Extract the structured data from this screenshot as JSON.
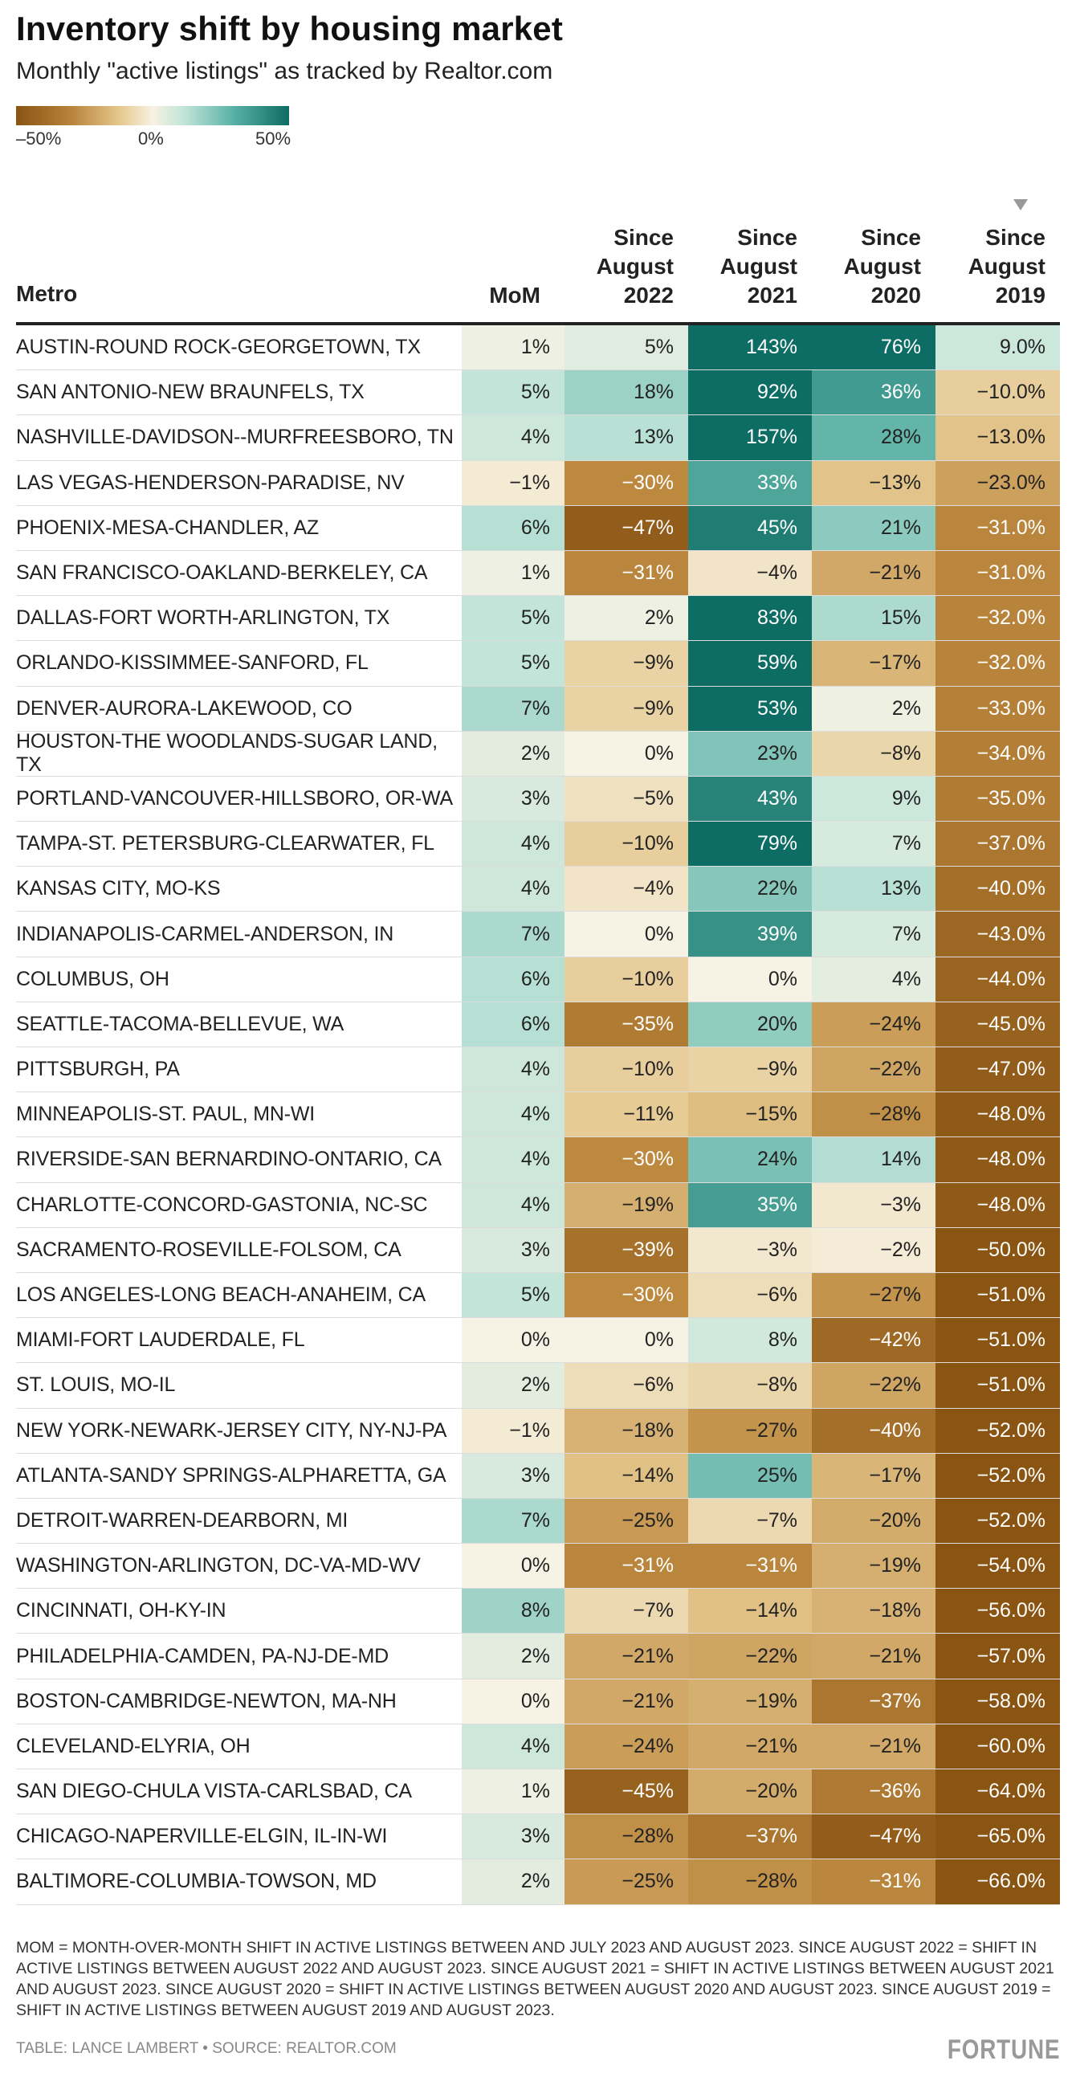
{
  "title": "Inventory shift by housing market",
  "subtitle": "Monthly \"active listings\" as tracked by Realtor.com",
  "legend": {
    "min_label": "–50%",
    "mid_label": "0%",
    "max_label": "50%"
  },
  "colors": {
    "neg_max": "#8a5413",
    "neutral": "#f7f2e3",
    "pos_max": "#0d6c63"
  },
  "columns": {
    "metro": "Metro",
    "mom": "MoM",
    "c2022": [
      "Since",
      "August",
      "2022"
    ],
    "c2021": [
      "Since",
      "August",
      "2021"
    ],
    "c2020": [
      "Since",
      "August",
      "2020"
    ],
    "c2019": [
      "Since",
      "August",
      "2019"
    ],
    "sorted_by": "c2019"
  },
  "chart_data": {
    "type": "table",
    "title": "Inventory shift by housing market",
    "subtitle": "Monthly \"active listings\" as tracked by Realtor.com",
    "color_scale": {
      "min": -50,
      "max": 50
    },
    "rows": [
      {
        "metro": "AUSTIN-ROUND ROCK-GEORGETOWN, TX",
        "mom": 1,
        "c2022": 5,
        "c2021": 143,
        "c2020": 76,
        "c2019": 9.0
      },
      {
        "metro": "SAN ANTONIO-NEW BRAUNFELS, TX",
        "mom": 5,
        "c2022": 18,
        "c2021": 92,
        "c2020": 36,
        "c2019": -10.0
      },
      {
        "metro": "NASHVILLE-DAVIDSON--MURFREESBORO, TN",
        "mom": 4,
        "c2022": 13,
        "c2021": 157,
        "c2020": 28,
        "c2019": -13.0
      },
      {
        "metro": "LAS VEGAS-HENDERSON-PARADISE, NV",
        "mom": -1,
        "c2022": -30,
        "c2021": 33,
        "c2020": -13,
        "c2019": -23.0
      },
      {
        "metro": "PHOENIX-MESA-CHANDLER, AZ",
        "mom": 6,
        "c2022": -47,
        "c2021": 45,
        "c2020": 21,
        "c2019": -31.0
      },
      {
        "metro": "SAN FRANCISCO-OAKLAND-BERKELEY, CA",
        "mom": 1,
        "c2022": -31,
        "c2021": -4,
        "c2020": -21,
        "c2019": -31.0
      },
      {
        "metro": "DALLAS-FORT WORTH-ARLINGTON, TX",
        "mom": 5,
        "c2022": 2,
        "c2021": 83,
        "c2020": 15,
        "c2019": -32.0
      },
      {
        "metro": "ORLANDO-KISSIMMEE-SANFORD, FL",
        "mom": 5,
        "c2022": -9,
        "c2021": 59,
        "c2020": -17,
        "c2019": -32.0
      },
      {
        "metro": "DENVER-AURORA-LAKEWOOD, CO",
        "mom": 7,
        "c2022": -9,
        "c2021": 53,
        "c2020": 2,
        "c2019": -33.0
      },
      {
        "metro": "HOUSTON-THE WOODLANDS-SUGAR LAND, TX",
        "mom": 2,
        "c2022": 0,
        "c2021": 23,
        "c2020": -8,
        "c2019": -34.0
      },
      {
        "metro": "PORTLAND-VANCOUVER-HILLSBORO, OR-WA",
        "mom": 3,
        "c2022": -5,
        "c2021": 43,
        "c2020": 9,
        "c2019": -35.0
      },
      {
        "metro": "TAMPA-ST. PETERSBURG-CLEARWATER, FL",
        "mom": 4,
        "c2022": -10,
        "c2021": 79,
        "c2020": 7,
        "c2019": -37.0
      },
      {
        "metro": "KANSAS CITY, MO-KS",
        "mom": 4,
        "c2022": -4,
        "c2021": 22,
        "c2020": 13,
        "c2019": -40.0
      },
      {
        "metro": "INDIANAPOLIS-CARMEL-ANDERSON, IN",
        "mom": 7,
        "c2022": 0,
        "c2021": 39,
        "c2020": 7,
        "c2019": -43.0
      },
      {
        "metro": "COLUMBUS, OH",
        "mom": 6,
        "c2022": -10,
        "c2021": 0,
        "c2020": 4,
        "c2019": -44.0
      },
      {
        "metro": "SEATTLE-TACOMA-BELLEVUE, WA",
        "mom": 6,
        "c2022": -35,
        "c2021": 20,
        "c2020": -24,
        "c2019": -45.0
      },
      {
        "metro": "PITTSBURGH, PA",
        "mom": 4,
        "c2022": -10,
        "c2021": -9,
        "c2020": -22,
        "c2019": -47.0
      },
      {
        "metro": "MINNEAPOLIS-ST. PAUL, MN-WI",
        "mom": 4,
        "c2022": -11,
        "c2021": -15,
        "c2020": -28,
        "c2019": -48.0
      },
      {
        "metro": "RIVERSIDE-SAN BERNARDINO-ONTARIO, CA",
        "mom": 4,
        "c2022": -30,
        "c2021": 24,
        "c2020": 14,
        "c2019": -48.0
      },
      {
        "metro": "CHARLOTTE-CONCORD-GASTONIA, NC-SC",
        "mom": 4,
        "c2022": -19,
        "c2021": 35,
        "c2020": -3,
        "c2019": -48.0
      },
      {
        "metro": "SACRAMENTO-ROSEVILLE-FOLSOM, CA",
        "mom": 3,
        "c2022": -39,
        "c2021": -3,
        "c2020": -2,
        "c2019": -50.0
      },
      {
        "metro": "LOS ANGELES-LONG BEACH-ANAHEIM, CA",
        "mom": 5,
        "c2022": -30,
        "c2021": -6,
        "c2020": -27,
        "c2019": -51.0
      },
      {
        "metro": "MIAMI-FORT LAUDERDALE, FL",
        "mom": 0,
        "c2022": 0,
        "c2021": 8,
        "c2020": -42,
        "c2019": -51.0
      },
      {
        "metro": "ST. LOUIS, MO-IL",
        "mom": 2,
        "c2022": -6,
        "c2021": -8,
        "c2020": -22,
        "c2019": -51.0
      },
      {
        "metro": "NEW YORK-NEWARK-JERSEY CITY, NY-NJ-PA",
        "mom": -1,
        "c2022": -18,
        "c2021": -27,
        "c2020": -40,
        "c2019": -52.0
      },
      {
        "metro": "ATLANTA-SANDY SPRINGS-ALPHARETTA, GA",
        "mom": 3,
        "c2022": -14,
        "c2021": 25,
        "c2020": -17,
        "c2019": -52.0
      },
      {
        "metro": "DETROIT-WARREN-DEARBORN, MI",
        "mom": 7,
        "c2022": -25,
        "c2021": -7,
        "c2020": -20,
        "c2019": -52.0
      },
      {
        "metro": "WASHINGTON-ARLINGTON, DC-VA-MD-WV",
        "mom": 0,
        "c2022": -31,
        "c2021": -31,
        "c2020": -19,
        "c2019": -54.0
      },
      {
        "metro": "CINCINNATI, OH-KY-IN",
        "mom": 8,
        "c2022": -7,
        "c2021": -14,
        "c2020": -18,
        "c2019": -56.0
      },
      {
        "metro": "PHILADELPHIA-CAMDEN, PA-NJ-DE-MD",
        "mom": 2,
        "c2022": -21,
        "c2021": -22,
        "c2020": -21,
        "c2019": -57.0
      },
      {
        "metro": "BOSTON-CAMBRIDGE-NEWTON, MA-NH",
        "mom": 0,
        "c2022": -21,
        "c2021": -19,
        "c2020": -37,
        "c2019": -58.0
      },
      {
        "metro": "CLEVELAND-ELYRIA, OH",
        "mom": 4,
        "c2022": -24,
        "c2021": -21,
        "c2020": -21,
        "c2019": -60.0
      },
      {
        "metro": "SAN DIEGO-CHULA VISTA-CARLSBAD, CA",
        "mom": 1,
        "c2022": -45,
        "c2021": -20,
        "c2020": -36,
        "c2019": -64.0
      },
      {
        "metro": "CHICAGO-NAPERVILLE-ELGIN, IL-IN-WI",
        "mom": 3,
        "c2022": -28,
        "c2021": -37,
        "c2020": -47,
        "c2019": -65.0
      },
      {
        "metro": "BALTIMORE-COLUMBIA-TOWSON, MD",
        "mom": 2,
        "c2022": -25,
        "c2021": -28,
        "c2020": -31,
        "c2019": -66.0
      }
    ]
  },
  "footnote": "MoM = Month-over-month shift in active listings between and July 2023 and August 2023. Since August 2022 = Shift in active listings between August 2022 and August 2023. Since August 2021 = Shift in active listings between August 2021 and August 2023. Since August 2020 = Shift in active listings between August 2020 and August 2023. Since August 2019 = Shift in active listings between August 2019 and August 2023.",
  "credit": "Table: Lance Lambert • Source: Realtor.com",
  "brand": "FORTUNE"
}
